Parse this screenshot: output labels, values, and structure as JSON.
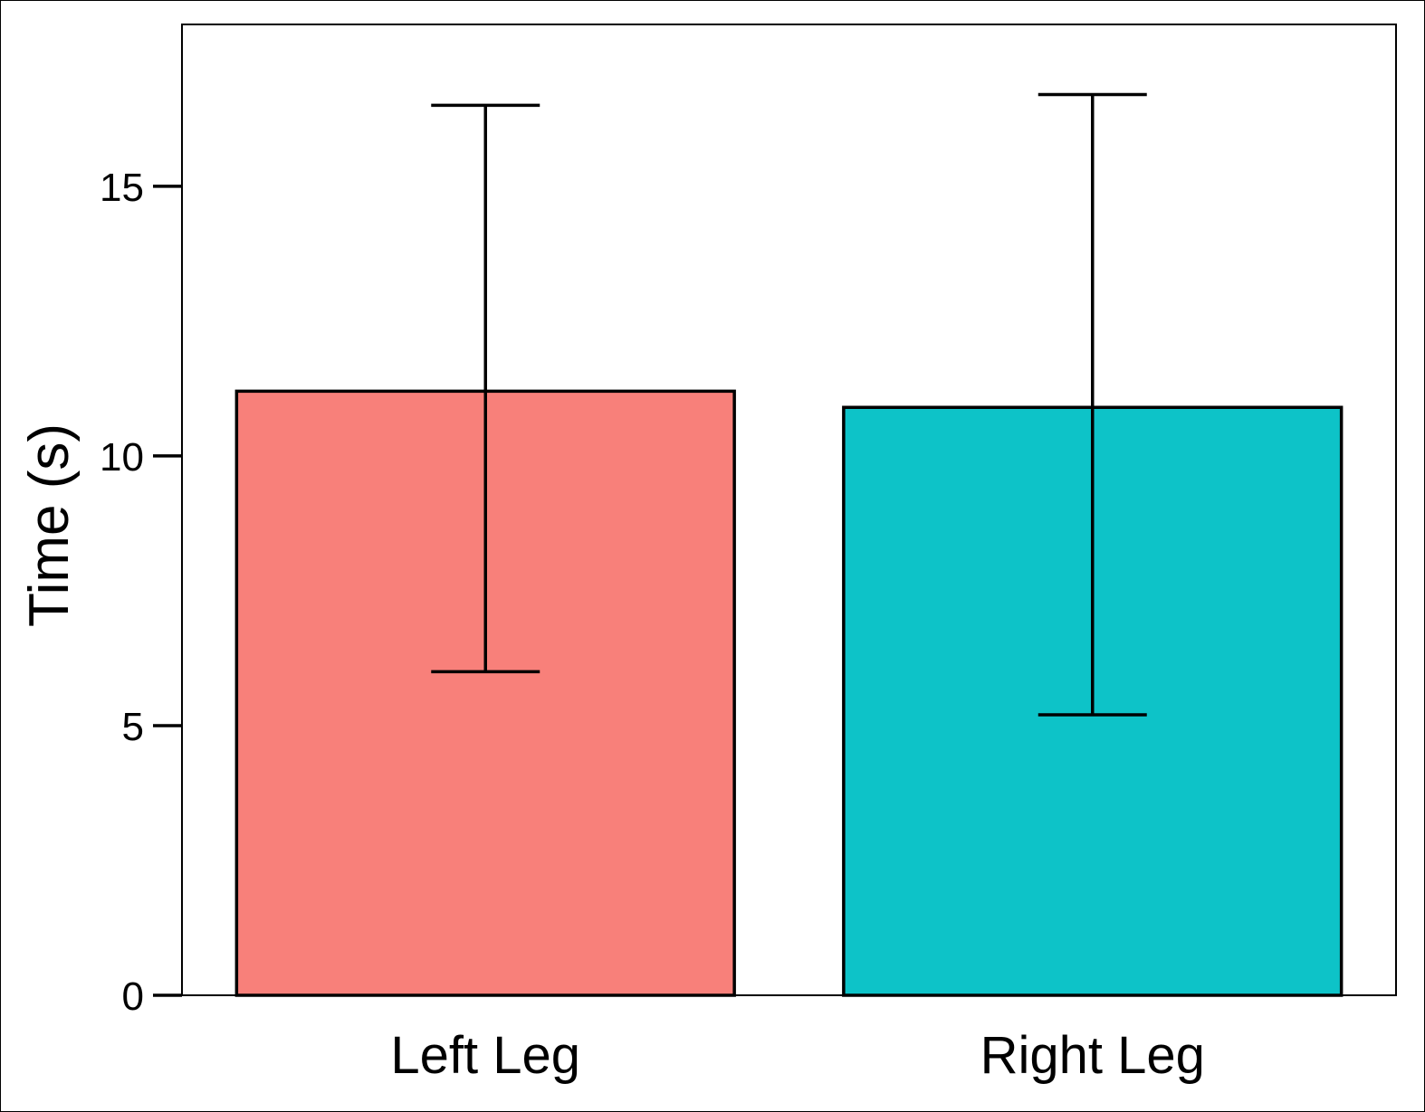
{
  "chart_data": {
    "type": "bar",
    "title": "",
    "xlabel": "",
    "ylabel": "Time (s)",
    "categories": [
      "Left Leg",
      "Right Leg"
    ],
    "values": [
      11.2,
      10.9
    ],
    "error_bars": [
      {
        "low": 6.0,
        "high": 16.5
      },
      {
        "low": 5.2,
        "high": 16.7
      }
    ],
    "colors": [
      "#F8807A",
      "#0DC3C8"
    ],
    "ylim": [
      0,
      18
    ],
    "yticks": [
      "0",
      "5",
      "10",
      "15"
    ],
    "grid": false,
    "legend": "none"
  }
}
